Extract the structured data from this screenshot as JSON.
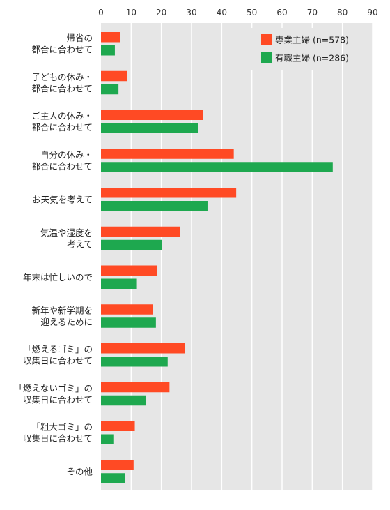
{
  "chart_data": {
    "type": "bar",
    "orientation": "horizontal",
    "xlim": [
      0,
      90
    ],
    "ticks": [
      0,
      10,
      20,
      30,
      40,
      50,
      60,
      70,
      80,
      90
    ],
    "grid": true,
    "legend_position": "top-right",
    "categories": [
      [
        "帰省の",
        "都合に合わせて"
      ],
      [
        "子どもの休み・",
        "都合に合わせて"
      ],
      [
        "ご主人の休み・",
        "都合に合わせて"
      ],
      [
        "自分の休み・",
        "都合に合わせて"
      ],
      [
        "お天気を考えて"
      ],
      [
        "気温や湿度を",
        "考えて"
      ],
      [
        "年末は忙しいので"
      ],
      [
        "新年や新学期を",
        "迎えるために"
      ],
      [
        "「燃えるゴミ」の",
        "収集日に合わせて"
      ],
      [
        "「燃えないゴミ」の",
        "収集日に合わせて"
      ],
      [
        "「粗大ゴミ」の",
        "収集日に合わせて"
      ],
      [
        "その他"
      ]
    ],
    "series": [
      {
        "name": "専業主婦 (n=578)",
        "color": "#ff4a24",
        "values": [
          6.3,
          8.7,
          33.9,
          44.0,
          44.8,
          26.2,
          18.6,
          17.3,
          27.8,
          22.7,
          11.2,
          10.8
        ]
      },
      {
        "name": "有職主婦 (n=286)",
        "color": "#1ea84f",
        "values": [
          4.6,
          5.8,
          32.3,
          76.8,
          35.3,
          20.3,
          11.9,
          18.2,
          22.1,
          14.9,
          4.1,
          8.0
        ]
      }
    ]
  },
  "colors": {
    "grid_bg": "#e6e6e6",
    "grid_line": "#ffffff"
  }
}
